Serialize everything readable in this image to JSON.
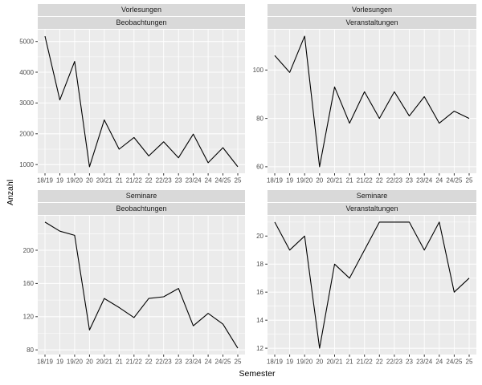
{
  "figure": {
    "ylabel": "Anzahl",
    "xlabel": "Semester",
    "facet_arrangement": "2x2, free scales, x labels repeated per panel",
    "colors": {
      "panel_bg": "#EBEBEB",
      "strip_bg": "#D9D9D9",
      "grid": "#FFFFFF",
      "line": "#000000",
      "tick_text": "#4D4D4D",
      "tick_mark": "#333333",
      "axis_title": "#000000"
    }
  },
  "chart_data": {
    "type": "line",
    "title": "",
    "xlabel": "Semester",
    "ylabel": "Anzahl",
    "grid": "on",
    "legend": "none",
    "categories": [
      "18/19",
      "19",
      "19/20",
      "20",
      "20/21",
      "21",
      "21/22",
      "22",
      "22/23",
      "23",
      "23/24",
      "24",
      "24/25",
      "25"
    ],
    "panels": [
      {
        "facet_row": "Vorlesungen",
        "facet_col": "Beobachtungen",
        "values": [
          5170,
          3100,
          4350,
          930,
          2450,
          1500,
          1880,
          1280,
          1740,
          1220,
          1990,
          1060,
          1550,
          930
        ],
        "yticks": [
          1000,
          2000,
          3000,
          4000,
          5000
        ],
        "ylim": [
          718,
          5382
        ]
      },
      {
        "facet_row": "Vorlesungen",
        "facet_col": "Veranstaltungen",
        "values": [
          106,
          99,
          114,
          60,
          93,
          78,
          91,
          80,
          91,
          81,
          89,
          78,
          83,
          80
        ],
        "yticks": [
          60,
          80,
          100
        ],
        "ylim": [
          57.3,
          116.7
        ]
      },
      {
        "facet_row": "Seminare",
        "facet_col": "Beobachtungen",
        "values": [
          234,
          223,
          218,
          104,
          142,
          131,
          119,
          142,
          144,
          154,
          109,
          124,
          111,
          82
        ],
        "yticks": [
          80,
          120,
          160,
          200
        ],
        "ylim": [
          74.4,
          241.6
        ]
      },
      {
        "facet_row": "Seminare",
        "facet_col": "Veranstaltungen",
        "values": [
          21,
          19,
          20,
          12,
          18,
          17,
          19,
          21,
          21,
          21,
          19,
          21,
          16,
          17
        ],
        "yticks": [
          12,
          14,
          16,
          18,
          20
        ],
        "ylim": [
          11.55,
          21.45
        ]
      }
    ]
  }
}
